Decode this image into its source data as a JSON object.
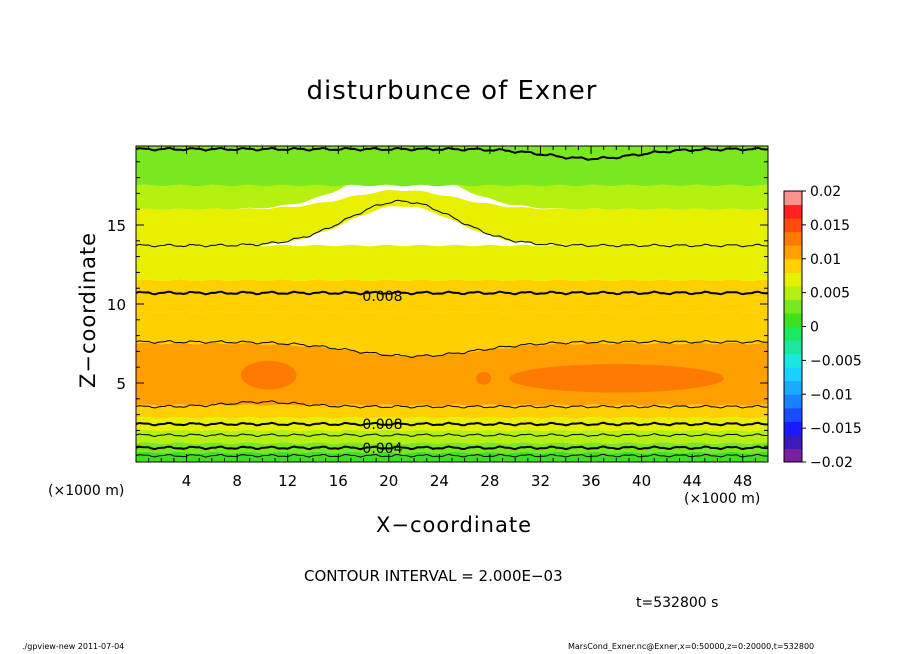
{
  "chart_data": {
    "type": "heatmap",
    "title": "disturbunce of Exner",
    "xlabel": "X−coordinate",
    "ylabel": "Z−coordinate",
    "x_unit": "(×1000 m)",
    "y_unit": "(×1000 m)",
    "xlim": [
      0,
      50
    ],
    "ylim": [
      0,
      20
    ],
    "x_ticks": [
      4,
      8,
      12,
      16,
      20,
      24,
      28,
      32,
      36,
      40,
      44,
      48
    ],
    "y_ticks": [
      5,
      10,
      15
    ],
    "colorbar": {
      "ticks": [
        "0.02",
        "0.015",
        "0.01",
        "0.005",
        "0",
        "−0.005",
        "−0.01",
        "−0.015",
        "−0.02"
      ],
      "range": [
        -0.02,
        0.02
      ],
      "levels": [
        {
          "from": -0.02,
          "to": -0.018,
          "color": "#7a1fa2"
        },
        {
          "from": -0.018,
          "to": -0.016,
          "color": "#3a1ab8"
        },
        {
          "from": -0.016,
          "to": -0.014,
          "color": "#1a1aff"
        },
        {
          "from": -0.014,
          "to": -0.012,
          "color": "#1a4cff"
        },
        {
          "from": -0.012,
          "to": -0.01,
          "color": "#1a80ff"
        },
        {
          "from": -0.01,
          "to": -0.008,
          "color": "#1aaaff"
        },
        {
          "from": -0.008,
          "to": -0.006,
          "color": "#1ad0ff"
        },
        {
          "from": -0.006,
          "to": -0.004,
          "color": "#1ae8e0"
        },
        {
          "from": -0.004,
          "to": -0.002,
          "color": "#1ae8a0"
        },
        {
          "from": -0.002,
          "to": 0.0,
          "color": "#1ae860"
        },
        {
          "from": 0.0,
          "to": 0.002,
          "color": "#40e020"
        },
        {
          "from": 0.002,
          "to": 0.004,
          "color": "#7ae820"
        },
        {
          "from": 0.004,
          "to": 0.006,
          "color": "#b4f010"
        },
        {
          "from": 0.006,
          "to": 0.008,
          "color": "#e8f000"
        },
        {
          "from": 0.008,
          "to": 0.01,
          "color": "#ffd000"
        },
        {
          "from": 0.01,
          "to": 0.012,
          "color": "#ffa000"
        },
        {
          "from": 0.012,
          "to": 0.014,
          "color": "#ff7a00"
        },
        {
          "from": 0.014,
          "to": 0.016,
          "color": "#ff4a10"
        },
        {
          "from": 0.016,
          "to": 0.018,
          "color": "#ff2020"
        },
        {
          "from": 0.018,
          "to": 0.02,
          "color": "#ff9090"
        }
      ]
    },
    "field_bands": [
      {
        "z_from": 0.0,
        "z_to": 0.6,
        "value": 0.001
      },
      {
        "z_from": 0.6,
        "z_to": 1.2,
        "value": 0.003
      },
      {
        "z_from": 1.2,
        "z_to": 2.0,
        "value": 0.005
      },
      {
        "z_from": 2.0,
        "z_to": 2.8,
        "value": 0.007
      },
      {
        "z_from": 2.8,
        "z_to": 3.6,
        "value": 0.009
      },
      {
        "z_from": 3.6,
        "z_to": 7.5,
        "value": 0.011
      },
      {
        "z_from": 7.5,
        "z_to": 9.5,
        "value": 0.009
      },
      {
        "z_from": 9.5,
        "z_to": 11.5,
        "value": 0.0085
      },
      {
        "z_from": 11.5,
        "z_to": 13.7,
        "value": 0.007
      },
      {
        "z_from": 13.7,
        "z_to": 16.0,
        "value": 0.006
      },
      {
        "z_from": 16.0,
        "z_to": 17.5,
        "value": 0.005
      },
      {
        "z_from": 17.5,
        "z_to": 20.0,
        "value": 0.003
      }
    ],
    "contour_labels": [
      {
        "x": 19.5,
        "z": 10.5,
        "text": "0.008"
      },
      {
        "x": 19.5,
        "z": 2.4,
        "text": "0.008"
      },
      {
        "x": 19.5,
        "z": 0.9,
        "text": "0.004"
      }
    ],
    "contour_interval": "CONTOUR INTERVAL = 2.000E−03",
    "time": "t=532800 s"
  },
  "footer": {
    "left": "./gpview-new   2011-07-04",
    "right": "MarsCond_Exner.nc@Exner,x=0:50000,z=0:20000,t=532800"
  }
}
